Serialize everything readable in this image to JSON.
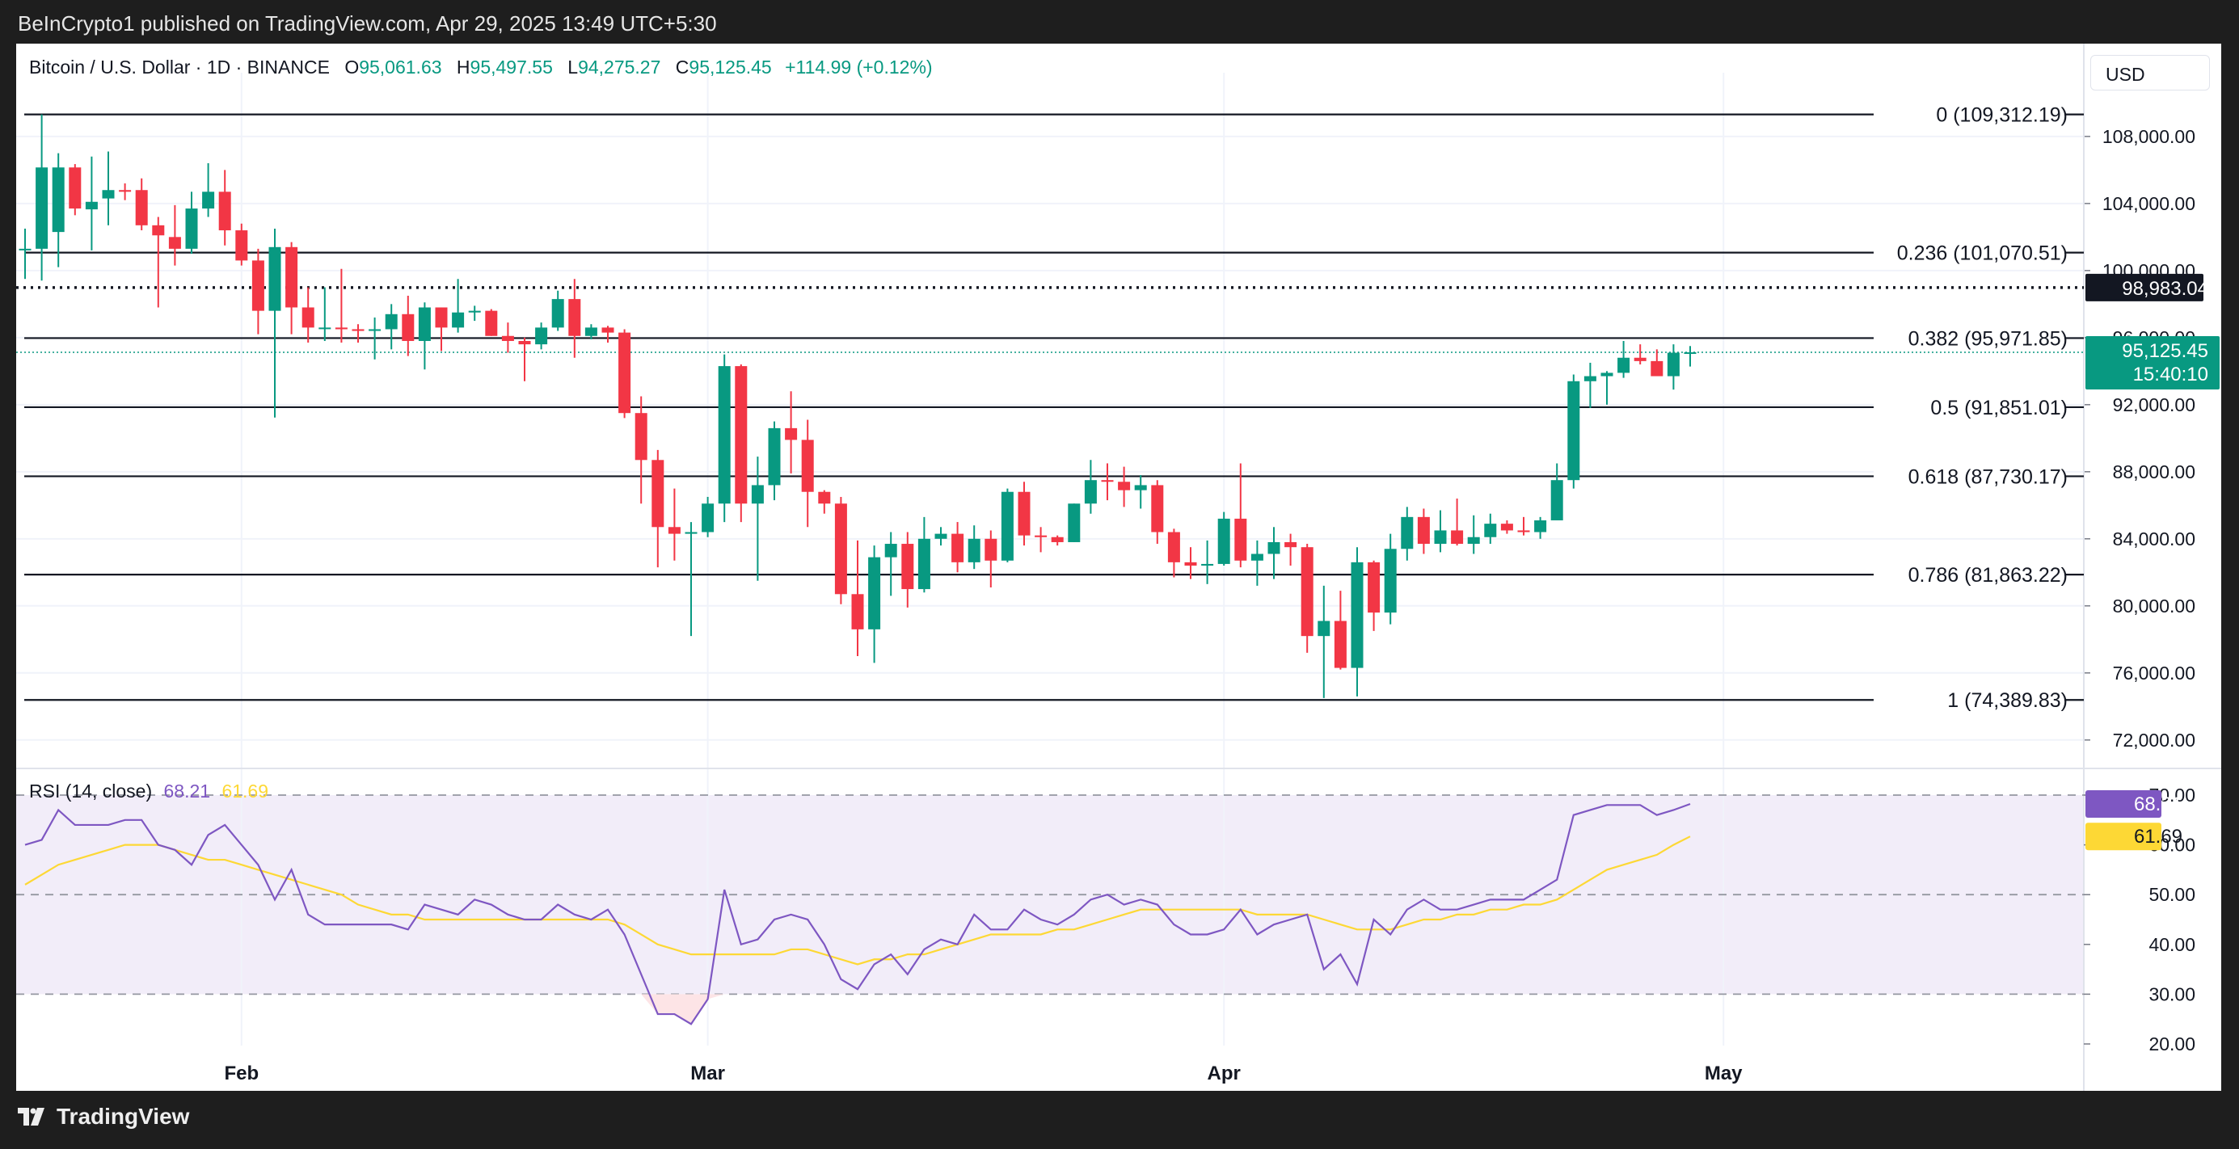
{
  "header": {
    "published": "BeInCrypto1 published on TradingView.com, Apr 29, 2025 13:49 UTC+5:30"
  },
  "legend": {
    "symbol": "Bitcoin / U.S. Dollar · 1D · BINANCE",
    "o_label": "O",
    "o": "95,061.63",
    "h_label": "H",
    "h": "95,497.55",
    "l_label": "L",
    "l": "94,275.27",
    "c_label": "C",
    "c": "95,125.45",
    "change": "+114.99 (+0.12%)"
  },
  "currency": "USD",
  "footer": {
    "brand": "TradingView"
  },
  "colors": {
    "up": "#089981",
    "down": "#f23645",
    "rsi": "#7e57c2",
    "rsi_ma": "#fdd835",
    "rsi_fill": "#f2edf9"
  },
  "price_scale": {
    "ticks": [
      "108,000.00",
      "104,000.00",
      "100,000.00",
      "96,000.00",
      "92,000.00",
      "88,000.00",
      "84,000.00",
      "80,000.00",
      "76,000.00",
      "72,000.00"
    ]
  },
  "badges": {
    "dotted_level": "98,983.04",
    "last_price": "95,125.45",
    "countdown": "15:40:10",
    "rsi": "68.21",
    "rsi_ma": "61.69"
  },
  "fib_levels": [
    {
      "label": "0 (109,312.19)",
      "value": 109312.19
    },
    {
      "label": "0.236 (101,070.51)",
      "value": 101070.51
    },
    {
      "label": "0.382 (95,971.85)",
      "value": 95971.85
    },
    {
      "label": "0.5 (91,851.01)",
      "value": 91851.01
    },
    {
      "label": "0.618 (87,730.17)",
      "value": 87730.17
    },
    {
      "label": "0.786 (81,863.22)",
      "value": 81863.22
    },
    {
      "label": "1 (74,389.83)",
      "value": 74389.83
    }
  ],
  "rsi_panel": {
    "title": "RSI (14, close)",
    "value": "68.21",
    "ma_value": "61.69",
    "ticks": [
      "70.00",
      "60.00",
      "50.00",
      "40.00",
      "30.00",
      "20.00"
    ]
  },
  "x_axis": {
    "labels": [
      "Feb",
      "Mar",
      "Apr",
      "May"
    ]
  },
  "chart_data": [
    {
      "type": "candlestick",
      "title": "Bitcoin / U.S. Dollar · 1D · BINANCE",
      "x": [
        "2025-01-19",
        "2025-01-20",
        "2025-01-21",
        "2025-01-22",
        "2025-01-23",
        "2025-01-24",
        "2025-01-25",
        "2025-01-26",
        "2025-01-27",
        "2025-01-28",
        "2025-01-29",
        "2025-01-30",
        "2025-01-31",
        "2025-02-01",
        "2025-02-02",
        "2025-02-03",
        "2025-02-04",
        "2025-02-05",
        "2025-02-06",
        "2025-02-07",
        "2025-02-08",
        "2025-02-09",
        "2025-02-10",
        "2025-02-11",
        "2025-02-12",
        "2025-02-13",
        "2025-02-14",
        "2025-02-15",
        "2025-02-16",
        "2025-02-17",
        "2025-02-18",
        "2025-02-19",
        "2025-02-20",
        "2025-02-21",
        "2025-02-22",
        "2025-02-23",
        "2025-02-24",
        "2025-02-25",
        "2025-02-26",
        "2025-02-27",
        "2025-02-28",
        "2025-03-01",
        "2025-03-02",
        "2025-03-03",
        "2025-03-04",
        "2025-03-05",
        "2025-03-06",
        "2025-03-07",
        "2025-03-08",
        "2025-03-09",
        "2025-03-10",
        "2025-03-11",
        "2025-03-12",
        "2025-03-13",
        "2025-03-14",
        "2025-03-15",
        "2025-03-16",
        "2025-03-17",
        "2025-03-18",
        "2025-03-19",
        "2025-03-20",
        "2025-03-21",
        "2025-03-22",
        "2025-03-23",
        "2025-03-24",
        "2025-03-25",
        "2025-03-26",
        "2025-03-27",
        "2025-03-28",
        "2025-03-29",
        "2025-03-30",
        "2025-03-31",
        "2025-04-01",
        "2025-04-02",
        "2025-04-03",
        "2025-04-04",
        "2025-04-05",
        "2025-04-06",
        "2025-04-07",
        "2025-04-08",
        "2025-04-09",
        "2025-04-10",
        "2025-04-11",
        "2025-04-12",
        "2025-04-13",
        "2025-04-14",
        "2025-04-15",
        "2025-04-16",
        "2025-04-17",
        "2025-04-18",
        "2025-04-19",
        "2025-04-20",
        "2025-04-21",
        "2025-04-22",
        "2025-04-23",
        "2025-04-24",
        "2025-04-25",
        "2025-04-26",
        "2025-04-27",
        "2025-04-28",
        "2025-04-29"
      ],
      "ohlc": [
        [
          101300,
          102500,
          99500,
          101300
        ],
        [
          101300,
          109312,
          99400,
          106150
        ],
        [
          102300,
          107000,
          100200,
          106150
        ],
        [
          106150,
          106350,
          103300,
          103700
        ],
        [
          103650,
          106800,
          101200,
          104100
        ],
        [
          104300,
          107100,
          102700,
          104800
        ],
        [
          104800,
          105200,
          104200,
          104700
        ],
        [
          104800,
          105500,
          102400,
          102700
        ],
        [
          102700,
          103200,
          97800,
          102100
        ],
        [
          102000,
          103900,
          100300,
          101300
        ],
        [
          101300,
          104700,
          101000,
          103700
        ],
        [
          103700,
          106400,
          103200,
          104700
        ],
        [
          104700,
          106000,
          101500,
          102400
        ],
        [
          102400,
          102800,
          100300,
          100600
        ],
        [
          100600,
          101300,
          96200,
          97600
        ],
        [
          97600,
          102500,
          91231,
          101400
        ],
        [
          101400,
          101700,
          96200,
          97800
        ],
        [
          97800,
          99000,
          95700,
          96600
        ],
        [
          96600,
          99000,
          95800,
          96600
        ],
        [
          96600,
          100100,
          95700,
          96500
        ],
        [
          96500,
          96800,
          95700,
          96400
        ],
        [
          96400,
          97200,
          94700,
          96500
        ],
        [
          96500,
          98000,
          95300,
          97400
        ],
        [
          97400,
          98500,
          94900,
          95800
        ],
        [
          95800,
          98100,
          94100,
          97800
        ],
        [
          97800,
          97800,
          95200,
          96600
        ],
        [
          96600,
          99500,
          96300,
          97500
        ],
        [
          97500,
          97900,
          97000,
          97600
        ],
        [
          97600,
          97700,
          96100,
          96100
        ],
        [
          96100,
          96900,
          95100,
          95800
        ],
        [
          95800,
          96000,
          93400,
          95600
        ],
        [
          95600,
          96900,
          95300,
          96600
        ],
        [
          96600,
          98800,
          96400,
          98300
        ],
        [
          98300,
          99500,
          94800,
          96100
        ],
        [
          96100,
          96800,
          95900,
          96600
        ],
        [
          96600,
          96700,
          95700,
          96300
        ],
        [
          96300,
          96500,
          91200,
          91500
        ],
        [
          91500,
          92500,
          86100,
          88700
        ],
        [
          88700,
          89300,
          82300,
          84700
        ],
        [
          84700,
          87000,
          82700,
          84300
        ],
        [
          84300,
          85000,
          78200,
          84400
        ],
        [
          84400,
          86500,
          84100,
          86100
        ],
        [
          86100,
          95000,
          85000,
          94300
        ],
        [
          94300,
          94400,
          85000,
          86100
        ],
        [
          86100,
          88900,
          81500,
          87200
        ],
        [
          87200,
          91000,
          86300,
          90600
        ],
        [
          90600,
          92800,
          87900,
          89900
        ],
        [
          89900,
          91100,
          84700,
          86800
        ],
        [
          86800,
          86900,
          85500,
          86100
        ],
        [
          86100,
          86500,
          80100,
          80700
        ],
        [
          80700,
          83900,
          77000,
          78600
        ],
        [
          78600,
          83600,
          76600,
          82900
        ],
        [
          82900,
          84400,
          80600,
          83700
        ],
        [
          83700,
          84400,
          79900,
          81000
        ],
        [
          81000,
          85300,
          80800,
          84000
        ],
        [
          84000,
          84700,
          83600,
          84300
        ],
        [
          84300,
          85000,
          82000,
          82600
        ],
        [
          82600,
          84800,
          82200,
          84000
        ],
        [
          84000,
          84500,
          81100,
          82700
        ],
        [
          82700,
          87000,
          82600,
          86800
        ],
        [
          86800,
          87400,
          83600,
          84200
        ],
        [
          84200,
          84700,
          83200,
          84100
        ],
        [
          84100,
          84200,
          83600,
          83800
        ],
        [
          83800,
          86100,
          83800,
          86100
        ],
        [
          86100,
          88700,
          85500,
          87500
        ],
        [
          87500,
          88500,
          86300,
          87400
        ],
        [
          87400,
          88300,
          85900,
          86900
        ],
        [
          86900,
          87800,
          85800,
          87200
        ],
        [
          87200,
          87500,
          83700,
          84400
        ],
        [
          84400,
          84600,
          81700,
          82600
        ],
        [
          82600,
          83500,
          81600,
          82400
        ],
        [
          82400,
          83900,
          81300,
          82500
        ],
        [
          82500,
          85600,
          82400,
          85200
        ],
        [
          85200,
          88500,
          82300,
          82700
        ],
        [
          82700,
          83900,
          81200,
          83100
        ],
        [
          83100,
          84700,
          81600,
          83800
        ],
        [
          83800,
          84300,
          82400,
          83500
        ],
        [
          83500,
          83700,
          77200,
          78200
        ],
        [
          78200,
          81200,
          74500,
          79100
        ],
        [
          79100,
          80900,
          76200,
          76300
        ],
        [
          76300,
          83500,
          74600,
          82600
        ],
        [
          82600,
          82700,
          78500,
          79600
        ],
        [
          79600,
          84300,
          78900,
          83400
        ],
        [
          83400,
          85900,
          82700,
          85300
        ],
        [
          85300,
          85800,
          83100,
          83700
        ],
        [
          83700,
          85700,
          83200,
          84500
        ],
        [
          84500,
          86400,
          83600,
          83700
        ],
        [
          83700,
          85400,
          83100,
          84100
        ],
        [
          84100,
          85500,
          83700,
          84900
        ],
        [
          84900,
          85100,
          84300,
          84500
        ],
        [
          84500,
          85300,
          84200,
          84400
        ],
        [
          84400,
          85300,
          84000,
          85100
        ],
        [
          85100,
          88500,
          85100,
          87500
        ],
        [
          87500,
          93800,
          87000,
          93400
        ],
        [
          93400,
          94500,
          91800,
          93700
        ],
        [
          93700,
          94000,
          92000,
          93900
        ],
        [
          93900,
          95800,
          93600,
          94800
        ],
        [
          94800,
          95600,
          94400,
          94600
        ],
        [
          94600,
          95300,
          93900,
          93700
        ],
        [
          93700,
          95600,
          92900,
          95100
        ],
        [
          95061.63,
          95497.55,
          94275.27,
          95125.45
        ]
      ],
      "ylim": [
        70400,
        111800
      ]
    },
    {
      "type": "line",
      "title": "RSI (14, close)",
      "series": [
        {
          "name": "RSI",
          "values": [
            60,
            61,
            67,
            64,
            64,
            64,
            65,
            65,
            60,
            59,
            56,
            62,
            64,
            60,
            56,
            49,
            55,
            46,
            44,
            44,
            44,
            44,
            44,
            43,
            48,
            47,
            46,
            49,
            48,
            46,
            45,
            45,
            48,
            46,
            45,
            47,
            42,
            34,
            26,
            26,
            24,
            29,
            51,
            40,
            41,
            45,
            46,
            45,
            40,
            33,
            31,
            36,
            38,
            34,
            39,
            41,
            40,
            46,
            43,
            43,
            47,
            45,
            44,
            46,
            49,
            50,
            48,
            49,
            48,
            44,
            42,
            42,
            43,
            47,
            42,
            44,
            45,
            46,
            35,
            38,
            32,
            45,
            42,
            47,
            49,
            47,
            47,
            48,
            49,
            49,
            49,
            51,
            53,
            66,
            67,
            68,
            68,
            68,
            66,
            67,
            68.21
          ]
        },
        {
          "name": "RSI-based MA",
          "values": [
            52,
            54,
            56,
            57,
            58,
            59,
            60,
            60,
            60,
            59,
            58,
            57,
            57,
            56,
            55,
            54,
            53,
            52,
            51,
            50,
            48,
            47,
            46,
            46,
            45,
            45,
            45,
            45,
            45,
            45,
            45,
            45,
            45,
            45,
            45,
            45,
            44,
            42,
            40,
            39,
            38,
            38,
            38,
            38,
            38,
            38,
            39,
            39,
            38,
            37,
            36,
            37,
            37,
            38,
            38,
            39,
            40,
            41,
            42,
            42,
            42,
            42,
            43,
            43,
            44,
            45,
            46,
            47,
            47,
            47,
            47,
            47,
            47,
            47,
            46,
            46,
            46,
            46,
            45,
            44,
            43,
            43,
            43,
            44,
            45,
            45,
            46,
            46,
            47,
            47,
            48,
            48,
            49,
            51,
            53,
            55,
            56,
            57,
            58,
            60,
            61.69
          ]
        }
      ],
      "ylim": [
        20,
        70
      ]
    }
  ]
}
